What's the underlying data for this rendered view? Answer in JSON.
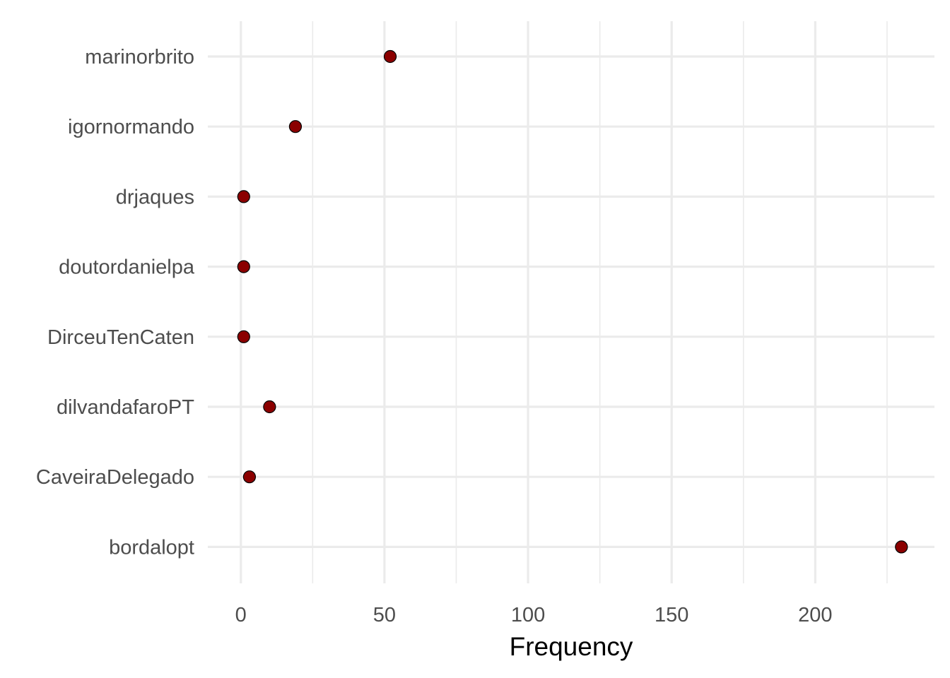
{
  "chart_data": {
    "type": "scatter",
    "title": "",
    "xlabel": "Frequency",
    "ylabel": "",
    "xlim": [
      -11.5,
      241.5
    ],
    "x_ticks": [
      0,
      50,
      100,
      150,
      200
    ],
    "x_tick_labels": [
      "0",
      "50",
      "100",
      "150",
      "200"
    ],
    "grid": true,
    "legend": "none",
    "categories": [
      "marinorbrito",
      "igornormando",
      "drjaques",
      "doutordanielpa",
      "DirceuTenCaten",
      "dilvandafaroPT",
      "CaveiraDelegado",
      "bordalopt"
    ],
    "values": [
      52,
      19,
      1,
      1,
      1,
      10,
      3,
      230
    ],
    "colors": {
      "point_fill": "#8b0000",
      "point_stroke": "#000000",
      "grid": "#ebebeb",
      "tick_text": "#4d4d4d"
    }
  }
}
